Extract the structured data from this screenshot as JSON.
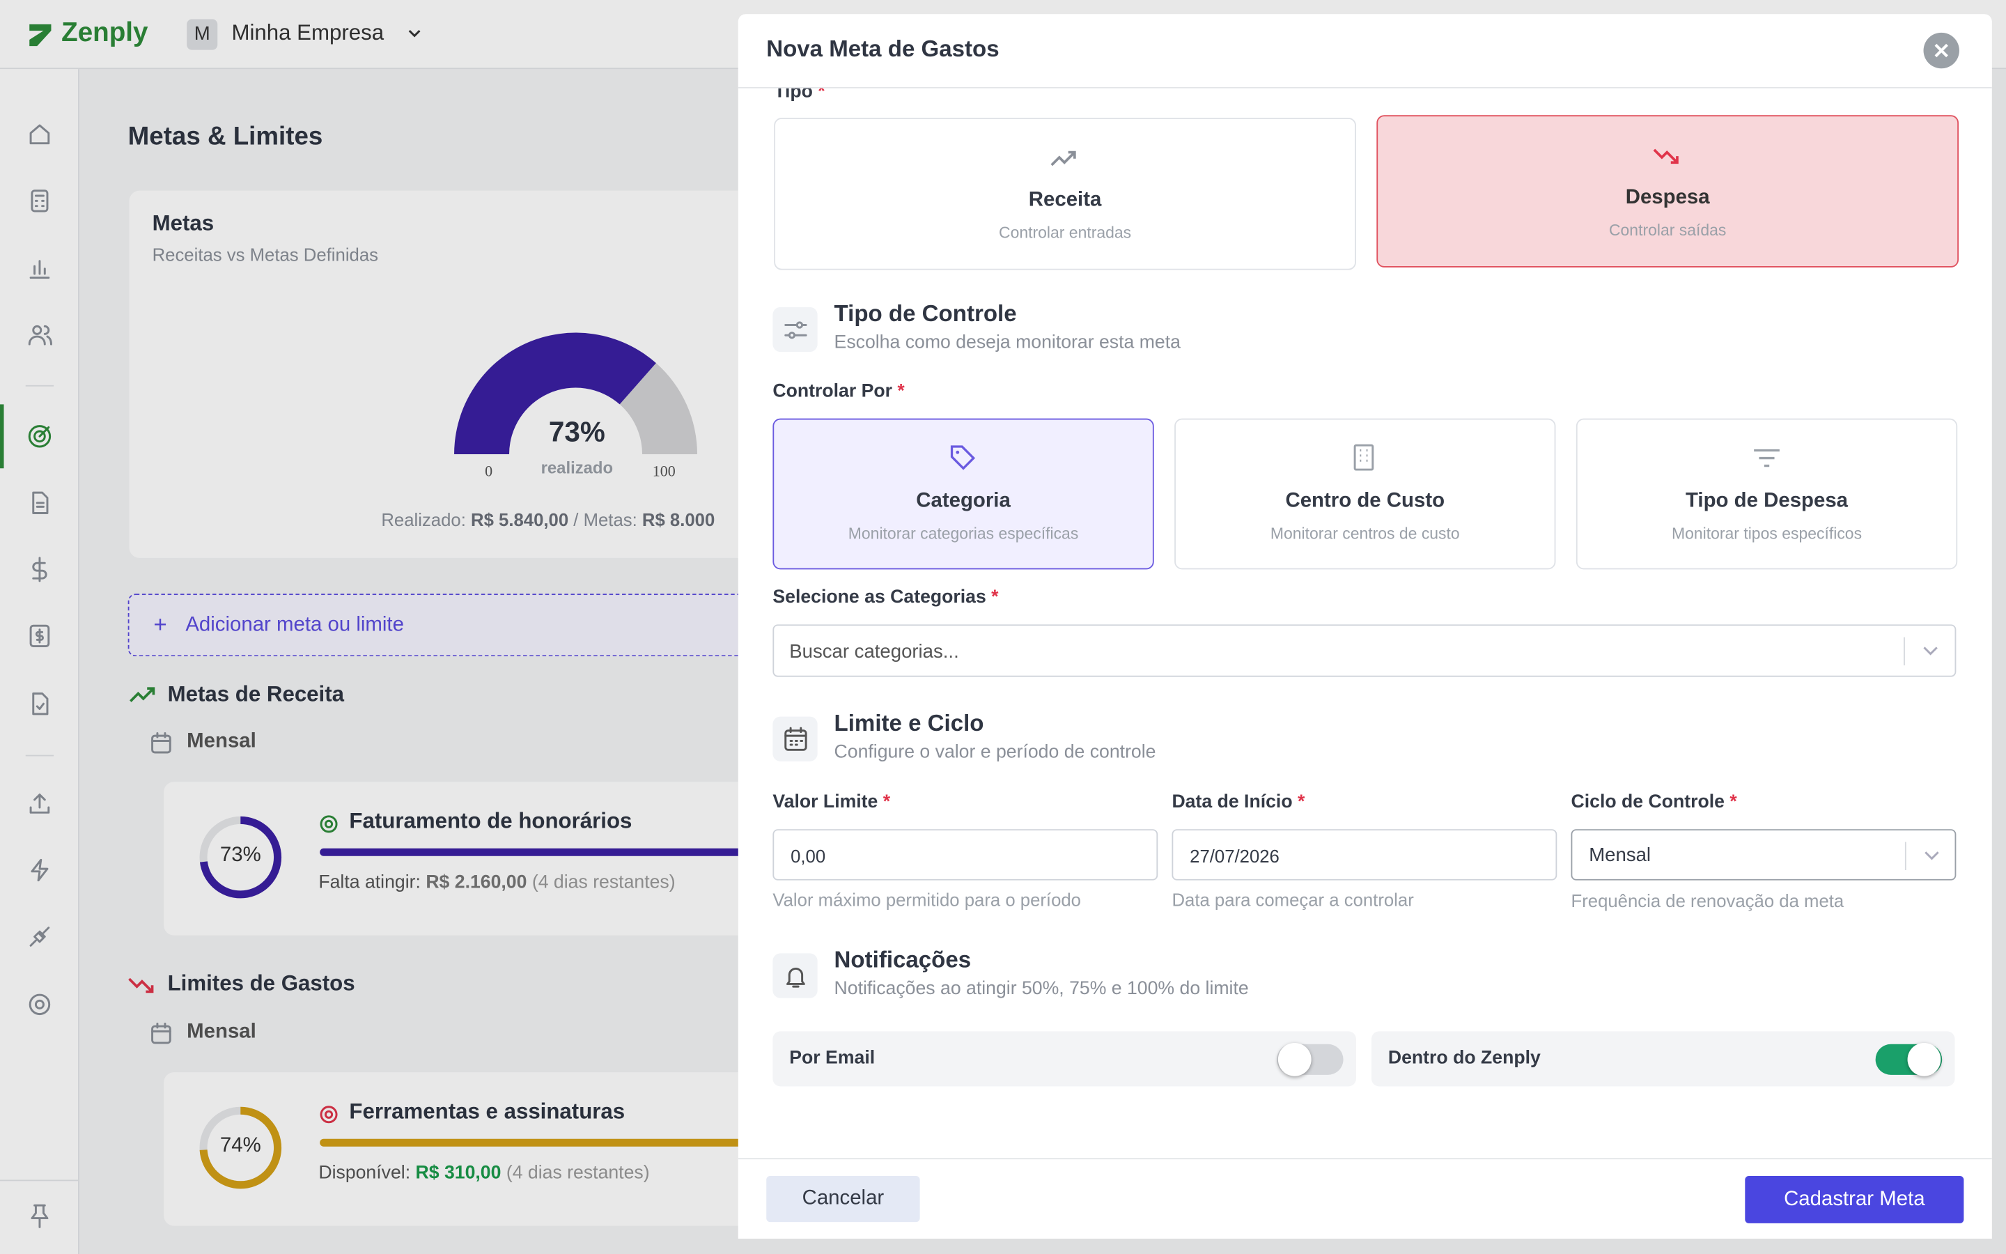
{
  "app": {
    "brand": "Zenply",
    "company_initial": "M",
    "company": "Minha Empresa"
  },
  "page": {
    "title": "Metas & Limites",
    "metas_card": {
      "title": "Metas",
      "subtitle": "Receitas vs Metas Definidas",
      "gauge": {
        "value": 73,
        "label": "73%",
        "caption": "realizado",
        "min": 0,
        "max": 100,
        "color": "#3b1fa3"
      },
      "summary": {
        "realizado_label": "Realizado:",
        "realizado_value": "R$ 5.840,00",
        "separator": "/",
        "metas_label": "Metas:",
        "metas_value": "R$ 8.000"
      }
    },
    "add_button": "Adicionar meta ou limite",
    "receita_section": {
      "title": "Metas de Receita",
      "period": "Mensal",
      "items": [
        {
          "progress": 73,
          "progress_label": "73%",
          "color": "#3b1fa3",
          "name": "Faturamento de honorários",
          "status_label": "Falta atingir:",
          "amount": "R$ 2.160,00",
          "remaining": "(4 dias restantes)"
        }
      ]
    },
    "gastos_section": {
      "title": "Limites de Gastos",
      "period": "Mensal",
      "items": [
        {
          "progress": 74,
          "progress_label": "74%",
          "color": "#d4a017",
          "name": "Ferramentas e assinaturas",
          "status_label": "Disponível:",
          "amount": "R$ 310,00",
          "remaining": "(4 dias restantes)"
        }
      ]
    }
  },
  "modal": {
    "title": "Nova Meta de Gastos",
    "required_mark": "*",
    "tipo": {
      "label": "Tipo",
      "options": [
        {
          "title": "Receita",
          "subtitle": "Controlar entradas",
          "selected": false
        },
        {
          "title": "Despesa",
          "subtitle": "Controlar saídas",
          "selected": true
        }
      ]
    },
    "tipo_controle": {
      "title": "Tipo de Controle",
      "subtitle": "Escolha como deseja monitorar esta meta",
      "label": "Controlar Por",
      "options": [
        {
          "title": "Categoria",
          "subtitle": "Monitorar categorias específicas",
          "selected": true
        },
        {
          "title": "Centro de Custo",
          "subtitle": "Monitorar centros de custo",
          "selected": false
        },
        {
          "title": "Tipo de Despesa",
          "subtitle": "Monitorar tipos específicos",
          "selected": false
        }
      ]
    },
    "categorias": {
      "label": "Selecione as Categorias",
      "placeholder": "Buscar categorias..."
    },
    "limite_ciclo": {
      "title": "Limite e Ciclo",
      "subtitle": "Configure o valor e período de controle",
      "fields": [
        {
          "label": "Valor Limite",
          "value": "0,00",
          "help": "Valor máximo permitido para o período"
        },
        {
          "label": "Data de Início",
          "value": "27/07/2026",
          "help": "Data para começar a controlar"
        },
        {
          "label": "Ciclo de Controle",
          "value": "Mensal",
          "help": "Frequência de renovação da meta"
        }
      ]
    },
    "notificacoes": {
      "title": "Notificações",
      "subtitle": "Notificações ao atingir 50%, 75% e 100% do limite",
      "toggles": [
        {
          "label": "Por Email",
          "on": false
        },
        {
          "label": "Dentro do Zenply",
          "on": true
        }
      ]
    },
    "cancel": "Cancelar",
    "submit": "Cadastrar Meta"
  }
}
